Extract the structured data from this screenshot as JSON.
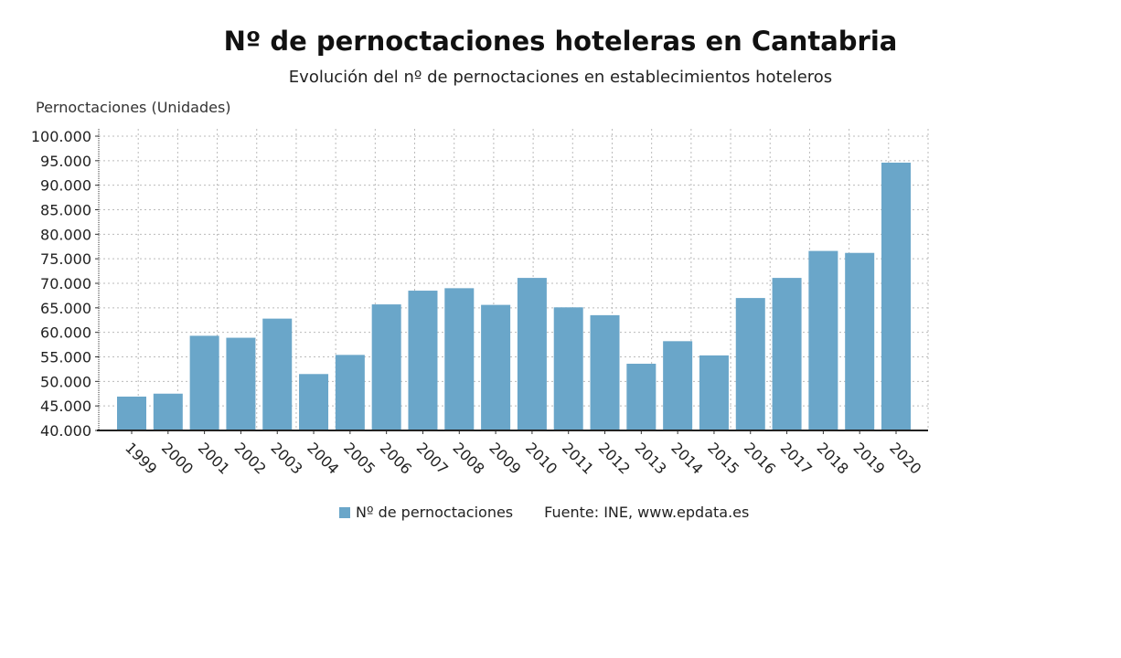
{
  "chart_data": {
    "type": "bar",
    "title": "Nº de pernoctaciones hoteleras en Cantabria",
    "subtitle": "Evolución del nº de pernoctaciones en establecimientos hoteleros",
    "ylabel": "Pernoctaciones (Unidades)",
    "xlabel": "",
    "ylim": [
      40000,
      100000
    ],
    "yticks": [
      40000,
      45000,
      50000,
      55000,
      60000,
      65000,
      70000,
      75000,
      80000,
      85000,
      90000,
      95000,
      100000
    ],
    "ytick_labels": [
      "40.000",
      "45.000",
      "50.000",
      "55.000",
      "60.000",
      "65.000",
      "70.000",
      "75.000",
      "80.000",
      "85.000",
      "90.000",
      "95.000",
      "100.000"
    ],
    "categories": [
      "1999",
      "2000",
      "2001",
      "2002",
      "2003",
      "2004",
      "2005",
      "2006",
      "2007",
      "2008",
      "2009",
      "2010",
      "2011",
      "2012",
      "2013",
      "2014",
      "2015",
      "2016",
      "2017",
      "2018",
      "2019",
      "2020"
    ],
    "series": [
      {
        "name": "Nº de pernoctaciones",
        "color": "#6aa6c9",
        "values": [
          46900,
          47500,
          59300,
          58900,
          62800,
          51500,
          55400,
          65700,
          68500,
          69000,
          65600,
          71100,
          65100,
          63500,
          53600,
          58200,
          55300,
          67000,
          71100,
          76600,
          76200,
          94600
        ]
      }
    ],
    "grid": true,
    "legend": "bottom",
    "source": "Fuente: INE, www.epdata.es"
  }
}
